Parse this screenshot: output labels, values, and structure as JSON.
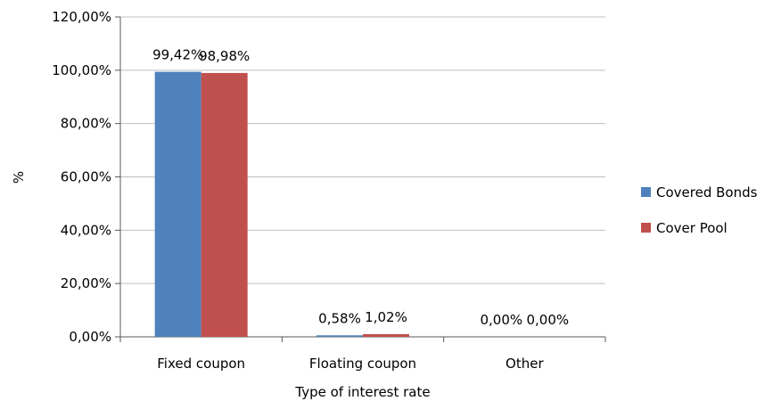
{
  "chart_data": {
    "type": "bar",
    "categories": [
      "Fixed coupon",
      "Floating coupon",
      "Other"
    ],
    "series": [
      {
        "name": "Covered Bonds",
        "values": [
          99.42,
          0.58,
          0.0
        ],
        "labels": [
          "99,42%",
          "0,58%",
          "0,00%"
        ],
        "color": "#4f81bd"
      },
      {
        "name": "Cover Pool",
        "values": [
          98.98,
          1.02,
          0.0
        ],
        "labels": [
          "98,98%",
          "1,02%",
          "0,00%"
        ],
        "color": "#c0504d"
      }
    ],
    "xlabel": "Type of interest rate",
    "ylabel": "%",
    "ylim": [
      0,
      120
    ],
    "yticks": [
      0,
      20,
      40,
      60,
      80,
      100,
      120
    ],
    "ytick_labels": [
      "0,00%",
      "20,00%",
      "40,00%",
      "60,00%",
      "80,00%",
      "100,00%",
      "120,00%"
    ],
    "grid": true,
    "legend_position": "right"
  }
}
